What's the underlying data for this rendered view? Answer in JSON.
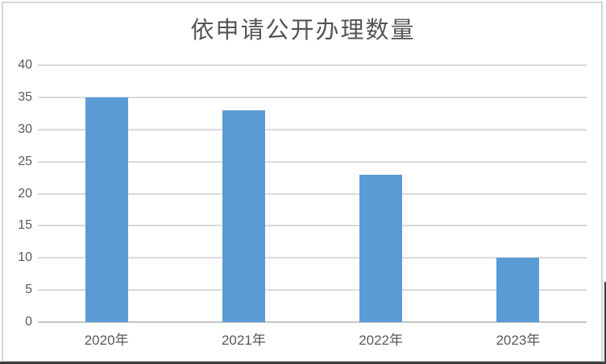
{
  "chart_data": {
    "type": "bar",
    "title": "依申请公开办理数量",
    "categories": [
      "2020年",
      "2021年",
      "2022年",
      "2023年"
    ],
    "values": [
      35,
      33,
      23,
      10
    ],
    "xlabel": "",
    "ylabel": "",
    "ylim": [
      0,
      40
    ],
    "yticks": [
      0,
      5,
      10,
      15,
      20,
      25,
      30,
      35,
      40
    ],
    "grid": true,
    "legend_position": "none",
    "colors": {
      "bar": "#5b9bd5",
      "gridline": "#dbdbdb",
      "axis_line": "#c4c4c4",
      "tick_text": "#595959",
      "title_text": "#555555",
      "chart_border": "#d6d6d6",
      "outer_dark_edge": "#3e3e3e"
    }
  }
}
